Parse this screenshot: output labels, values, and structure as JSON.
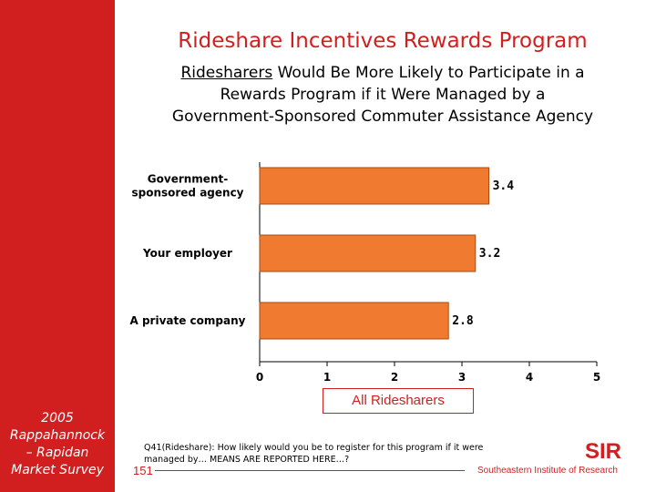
{
  "sidebar": {
    "lines": [
      "2005",
      "Rappahannock",
      "– Rapidan",
      "Market Survey"
    ]
  },
  "header": {
    "title": "Rideshare Incentives Rewards Program",
    "subtitle_underlined": "Ridesharers",
    "subtitle_line1_rest": " Would Be More Likely to Participate in a",
    "subtitle_line2": "Rewards Program if it Were Managed by a",
    "subtitle_line3": "Government-Sponsored Commuter Assistance Agency"
  },
  "legend": {
    "label": "All Ridesharers"
  },
  "footnote": {
    "line1": "Q41(Rideshare): How likely would you be to register for this program if it were",
    "line2": "managed by… MEANS ARE REPORTED HERE…?"
  },
  "page_number": "151",
  "organization": "Southeastern Institute of Research",
  "logo_text": "SIR",
  "colors": {
    "accent": "#d11f1f",
    "bar_fill": "#f07a2f",
    "bar_stroke": "#a84b10"
  },
  "chart_data": {
    "type": "bar",
    "orientation": "horizontal",
    "categories": [
      [
        "Government-",
        "sponsored agency"
      ],
      [
        "Your employer"
      ],
      [
        "A private company"
      ]
    ],
    "values": [
      3.4,
      3.2,
      2.8
    ],
    "value_labels": [
      "3.4",
      "3.2",
      "2.8"
    ],
    "x_ticks": [
      "0",
      "1",
      "2",
      "3",
      "4",
      "5"
    ],
    "xlim": [
      0,
      5
    ],
    "grid": false,
    "legend": "bottom-center",
    "legend_entries": [
      "All Ridesharers"
    ]
  }
}
